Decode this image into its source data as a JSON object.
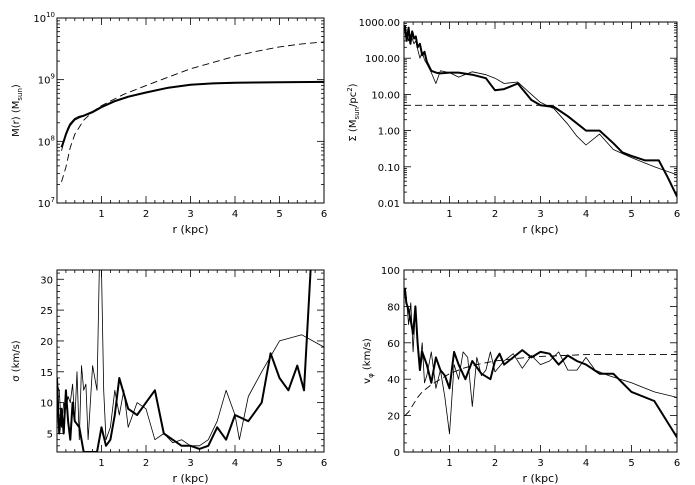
{
  "chart_data": [
    {
      "type": "line",
      "xlabel": "r (kpc)",
      "ylabel": "M(r) (M",
      "ylabel_sub": "sun",
      "ylabel_tail": ")",
      "yscale": "log",
      "xlim": [
        0,
        6
      ],
      "ylim": [
        10000000,
        10000000000
      ],
      "xticks": [
        "1",
        "2",
        "3",
        "4",
        "5",
        "6"
      ],
      "yticks": [
        {
          "base": "10",
          "exp": "7",
          "v": 10000000
        },
        {
          "base": "10",
          "exp": "8",
          "v": 100000000
        },
        {
          "base": "10",
          "exp": "9",
          "v": 1000000000
        },
        {
          "base": "10",
          "exp": "10",
          "v": 10000000000
        }
      ],
      "series": [
        {
          "name": "thick",
          "style": "thick",
          "x": [
            0.1,
            0.15,
            0.2,
            0.25,
            0.3,
            0.4,
            0.5,
            0.6,
            0.8,
            1.0,
            1.3,
            1.6,
            2.0,
            2.5,
            3.0,
            3.5,
            4.0,
            5.0,
            6.0
          ],
          "y": [
            80000000,
            100000000,
            130000000,
            160000000,
            190000000,
            230000000,
            250000000,
            260000000,
            300000000,
            360000000,
            450000000,
            530000000,
            620000000,
            740000000,
            830000000,
            870000000,
            890000000,
            910000000,
            920000000
          ]
        },
        {
          "name": "thin",
          "style": "thin",
          "x": [
            0.1,
            0.15,
            0.2,
            0.3,
            0.4,
            0.5,
            0.6,
            0.8,
            1.0,
            1.3,
            1.6,
            2.0,
            2.5,
            3.0,
            3.5,
            4.0,
            5.0,
            6.0
          ],
          "y": [
            70000000,
            95000000,
            125000000,
            180000000,
            220000000,
            240000000,
            255000000,
            290000000,
            350000000,
            440000000,
            520000000,
            610000000,
            730000000,
            820000000,
            860000000,
            880000000,
            900000000,
            910000000
          ]
        },
        {
          "name": "dashed",
          "style": "dashed",
          "x": [
            0.1,
            0.2,
            0.3,
            0.4,
            0.6,
            0.8,
            1.0,
            1.5,
            2.0,
            2.5,
            3.0,
            3.5,
            4.0,
            4.5,
            5.0,
            5.5,
            6.0
          ],
          "y": [
            22000000,
            38000000,
            80000000,
            130000000,
            220000000,
            300000000,
            380000000,
            580000000,
            800000000,
            1100000000,
            1500000000,
            1900000000,
            2400000000,
            2900000000,
            3400000000,
            3800000000,
            4100000000
          ]
        }
      ]
    },
    {
      "type": "line",
      "xlabel": "r (kpc)",
      "ylabel": "Σ (M",
      "ylabel_sub": "sun",
      "ylabel_tail": "/pc",
      "ylabel_sup": "2",
      "ylabel_end": ")",
      "yscale": "log",
      "xlim": [
        0,
        6
      ],
      "ylim": [
        0.01,
        1000
      ],
      "xticks": [
        "1",
        "2",
        "3",
        "4",
        "5",
        "6"
      ],
      "yticks": [
        {
          "label": "0.01",
          "v": 0.01
        },
        {
          "label": "0.10",
          "v": 0.1
        },
        {
          "label": "1.00",
          "v": 1
        },
        {
          "label": "10.00",
          "v": 10
        },
        {
          "label": "100.00",
          "v": 100
        },
        {
          "label": "1000.00",
          "v": 1000
        }
      ],
      "series": [
        {
          "name": "thick",
          "style": "thick",
          "x": [
            0.02,
            0.06,
            0.1,
            0.14,
            0.18,
            0.22,
            0.26,
            0.3,
            0.35,
            0.4,
            0.45,
            0.5,
            0.6,
            0.7,
            0.8,
            1.0,
            1.2,
            1.5,
            1.8,
            2.0,
            2.2,
            2.5,
            2.8,
            3.0,
            3.3,
            3.6,
            4.0,
            4.3,
            4.6,
            4.8,
            5.0,
            5.3,
            5.6,
            5.8,
            6.0
          ],
          "y": [
            800,
            300,
            700,
            250,
            550,
            350,
            400,
            200,
            250,
            120,
            150,
            80,
            45,
            40,
            38,
            40,
            40,
            35,
            28,
            13,
            14,
            20,
            7,
            5,
            4.5,
            2.5,
            1.0,
            1.0,
            0.45,
            0.25,
            0.2,
            0.15,
            0.15,
            0.05,
            0.015
          ]
        },
        {
          "name": "thin",
          "style": "thin",
          "x": [
            0.02,
            0.06,
            0.1,
            0.14,
            0.18,
            0.22,
            0.26,
            0.3,
            0.35,
            0.4,
            0.45,
            0.5,
            0.6,
            0.7,
            0.8,
            1.0,
            1.2,
            1.5,
            1.8,
            2.0,
            2.2,
            2.5,
            2.8,
            3.0,
            3.3,
            3.6,
            3.8,
            4.0,
            4.3,
            4.6,
            5.0,
            5.5,
            6.0
          ],
          "y": [
            600,
            500,
            300,
            450,
            350,
            250,
            300,
            180,
            100,
            150,
            90,
            70,
            40,
            20,
            45,
            40,
            30,
            42,
            35,
            28,
            20,
            22,
            10,
            6,
            4,
            1.5,
            0.7,
            0.4,
            0.8,
            0.3,
            0.18,
            0.1,
            0.06
          ]
        },
        {
          "name": "dashed",
          "style": "dashed",
          "x": [
            0,
            6
          ],
          "y": [
            5,
            5
          ]
        }
      ]
    },
    {
      "type": "line",
      "xlabel": "r (kpc)",
      "ylabel": "σ (km/s)",
      "yscale": "linear",
      "xlim": [
        0,
        6
      ],
      "ylim": [
        2,
        31.5
      ],
      "xticks": [
        "1",
        "2",
        "3",
        "4",
        "5",
        "6"
      ],
      "yticks": [
        {
          "label": "5",
          "v": 5
        },
        {
          "label": "10",
          "v": 10
        },
        {
          "label": "15",
          "v": 15
        },
        {
          "label": "20",
          "v": 20
        },
        {
          "label": "25",
          "v": 25
        },
        {
          "label": "30",
          "v": 30
        }
      ],
      "series": [
        {
          "name": "thick",
          "style": "thick",
          "x": [
            0,
            0.05,
            0.1,
            0.15,
            0.2,
            0.25,
            0.3,
            0.35,
            0.4,
            0.5,
            0.6,
            0.7,
            0.8,
            0.9,
            1.0,
            1.1,
            1.2,
            1.3,
            1.4,
            1.6,
            1.8,
            2.0,
            2.2,
            2.4,
            2.6,
            2.8,
            3.0,
            3.2,
            3.4,
            3.6,
            3.8,
            4.0,
            4.3,
            4.6,
            4.8,
            5.0,
            5.2,
            5.4,
            5.55,
            5.7
          ],
          "y": [
            14,
            5,
            9,
            5,
            12,
            7,
            4,
            10,
            7,
            6,
            2,
            2,
            2,
            2,
            6,
            3,
            4,
            8,
            14,
            9,
            8,
            10,
            12,
            5,
            4,
            3,
            3,
            2.5,
            3,
            6,
            4,
            8,
            7,
            10,
            18,
            14,
            12,
            16,
            12,
            31.5
          ]
        },
        {
          "name": "thin",
          "style": "thin",
          "x": [
            0,
            0.05,
            0.1,
            0.15,
            0.2,
            0.25,
            0.3,
            0.35,
            0.4,
            0.45,
            0.5,
            0.55,
            0.6,
            0.65,
            0.7,
            0.8,
            0.9,
            0.95,
            1.0,
            1.05,
            1.1,
            1.2,
            1.3,
            1.4,
            1.5,
            1.6,
            1.8,
            2.0,
            2.2,
            2.4,
            2.6,
            2.8,
            3.0,
            3.2,
            3.4,
            3.6,
            3.8,
            4.0,
            4.1,
            4.3,
            4.6,
            5.0,
            5.5,
            6.0
          ],
          "y": [
            13,
            12,
            6,
            10,
            9,
            11,
            10,
            13,
            7,
            15,
            4,
            16,
            12,
            13,
            4,
            16,
            12,
            31.5,
            31.5,
            12,
            4,
            6,
            12,
            8,
            12,
            6,
            10,
            9,
            4,
            5,
            3.5,
            4,
            3,
            3,
            4,
            7,
            12,
            8,
            4,
            11,
            15,
            20,
            21,
            19
          ]
        }
      ]
    },
    {
      "type": "line",
      "xlabel": "r (kpc)",
      "ylabel": "v",
      "ylabel_sub": "φ",
      "ylabel_tail": " (km/s)",
      "yscale": "linear",
      "xlim": [
        0,
        6
      ],
      "ylim": [
        0,
        100
      ],
      "xticks": [
        "1",
        "2",
        "3",
        "4",
        "5",
        "6"
      ],
      "yticks": [
        {
          "label": "0",
          "v": 0
        },
        {
          "label": "20",
          "v": 20
        },
        {
          "label": "40",
          "v": 40
        },
        {
          "label": "60",
          "v": 60
        },
        {
          "label": "80",
          "v": 80
        },
        {
          "label": "100",
          "v": 100
        }
      ],
      "series": [
        {
          "name": "thick",
          "style": "thick",
          "x": [
            0.02,
            0.05,
            0.1,
            0.15,
            0.2,
            0.25,
            0.3,
            0.35,
            0.4,
            0.5,
            0.6,
            0.7,
            0.8,
            0.9,
            1.0,
            1.1,
            1.2,
            1.35,
            1.5,
            1.7,
            1.9,
            2.0,
            2.1,
            2.2,
            2.4,
            2.6,
            2.8,
            3.0,
            3.2,
            3.4,
            3.6,
            3.8,
            4.0,
            4.3,
            4.6,
            5.0,
            5.5,
            6.0
          ],
          "y": [
            90,
            82,
            78,
            72,
            65,
            80,
            60,
            45,
            55,
            48,
            38,
            52,
            45,
            42,
            35,
            55,
            48,
            40,
            50,
            43,
            40,
            50,
            54,
            48,
            52,
            56,
            52,
            55,
            54,
            48,
            53,
            50,
            48,
            43,
            43,
            33,
            28,
            8
          ]
        },
        {
          "name": "thin",
          "style": "thin",
          "x": [
            0.02,
            0.05,
            0.1,
            0.15,
            0.2,
            0.25,
            0.3,
            0.35,
            0.4,
            0.45,
            0.5,
            0.6,
            0.7,
            0.8,
            0.9,
            1.0,
            1.1,
            1.2,
            1.3,
            1.4,
            1.5,
            1.6,
            1.7,
            1.8,
            1.9,
            2.0,
            2.2,
            2.4,
            2.6,
            2.8,
            3.0,
            3.2,
            3.4,
            3.6,
            3.8,
            4.0,
            4.2,
            4.5,
            5.0,
            5.5,
            6.0
          ],
          "y": [
            88,
            85,
            70,
            82,
            55,
            78,
            62,
            48,
            60,
            38,
            42,
            55,
            35,
            45,
            30,
            10,
            48,
            40,
            55,
            52,
            25,
            52,
            42,
            45,
            55,
            44,
            50,
            54,
            46,
            53,
            48,
            50,
            55,
            45,
            45,
            52,
            45,
            42,
            38,
            33,
            30
          ]
        },
        {
          "name": "dashed",
          "style": "dashed",
          "x": [
            0.02,
            0.1,
            0.2,
            0.3,
            0.4,
            0.6,
            0.8,
            1.0,
            1.3,
            1.6,
            2.0,
            2.5,
            3.0,
            3.5,
            4.0,
            4.5,
            5.0,
            5.5,
            6.0
          ],
          "y": [
            20,
            22,
            26,
            30,
            33,
            37,
            40,
            43,
            46,
            48,
            50,
            51.5,
            52.5,
            53,
            53.5,
            53.5,
            53.5,
            53.5,
            53.5
          ]
        }
      ]
    }
  ]
}
